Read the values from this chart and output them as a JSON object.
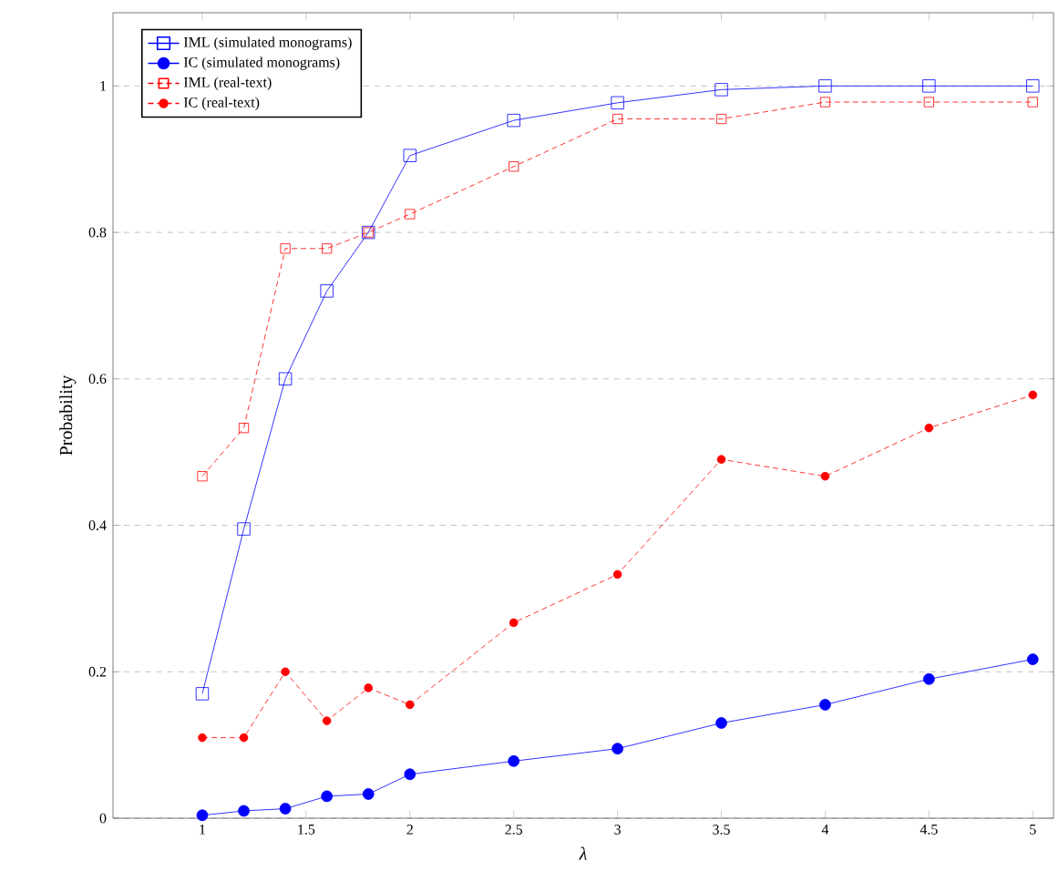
{
  "chart_data": {
    "type": "line",
    "xlabel": "λ",
    "ylabel": "Probability",
    "x": [
      1,
      1.2,
      1.4,
      1.6,
      1.8,
      2,
      2.5,
      3,
      3.5,
      4,
      4.5,
      5
    ],
    "series": [
      {
        "name": "IML (simulated monograms)",
        "color": "#0000ff",
        "marker": "square",
        "line_style": "solid",
        "values": [
          0.17,
          0.395,
          0.6,
          0.72,
          0.8,
          0.905,
          0.953,
          0.977,
          0.995,
          1.0,
          1.0,
          1.0
        ]
      },
      {
        "name": "IC (simulated monograms)",
        "color": "#0000ff",
        "marker": "circle",
        "line_style": "solid",
        "values": [
          0.004,
          0.01,
          0.013,
          0.03,
          0.033,
          0.06,
          0.078,
          0.095,
          0.13,
          0.155,
          0.19,
          0.217
        ]
      },
      {
        "name": "IML (real-text)",
        "color": "#ff0000",
        "marker": "square",
        "line_style": "dashed",
        "values": [
          0.467,
          0.533,
          0.778,
          0.778,
          0.8,
          0.825,
          0.89,
          0.955,
          0.955,
          0.978,
          0.978,
          0.978
        ]
      },
      {
        "name": "IC (real-text)",
        "color": "#ff0000",
        "marker": "circle",
        "line_style": "dashed",
        "values": [
          0.11,
          0.11,
          0.2,
          0.133,
          0.178,
          0.155,
          0.267,
          0.333,
          0.49,
          0.467,
          0.533,
          0.578
        ]
      }
    ],
    "xlim": [
      0.57,
      5.1
    ],
    "ylim": [
      0,
      1.1
    ],
    "xticks": [
      1,
      1.5,
      2,
      2.5,
      3,
      3.5,
      4,
      4.5,
      5
    ],
    "yticks": [
      0,
      0.2,
      0.4,
      0.6,
      0.8,
      1
    ],
    "grid": "y",
    "legend": "top left"
  }
}
